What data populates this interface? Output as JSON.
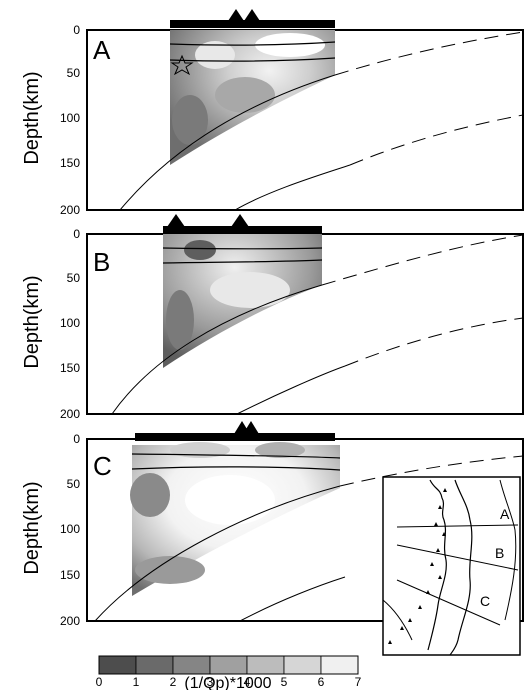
{
  "figure": {
    "ylabel": "Depth(km)",
    "depth_ticks": [
      "0",
      "50",
      "100",
      "150",
      "200"
    ],
    "panels": [
      {
        "id": "A",
        "label": "A"
      },
      {
        "id": "B",
        "label": "B"
      },
      {
        "id": "C",
        "label": "C"
      }
    ]
  },
  "colorbar": {
    "title": "(1/Qp)*1000",
    "ticks": [
      "0",
      "1",
      "2",
      "3",
      "4",
      "5",
      "6",
      "7"
    ],
    "colors": [
      "#4d4d4d",
      "#6a6a6a",
      "#858585",
      "#a0a0a0",
      "#bcbcbc",
      "#d6d6d6",
      "#f0f0f0"
    ]
  },
  "inset_map": {
    "profile_labels": [
      "A",
      "B",
      "C"
    ]
  }
}
